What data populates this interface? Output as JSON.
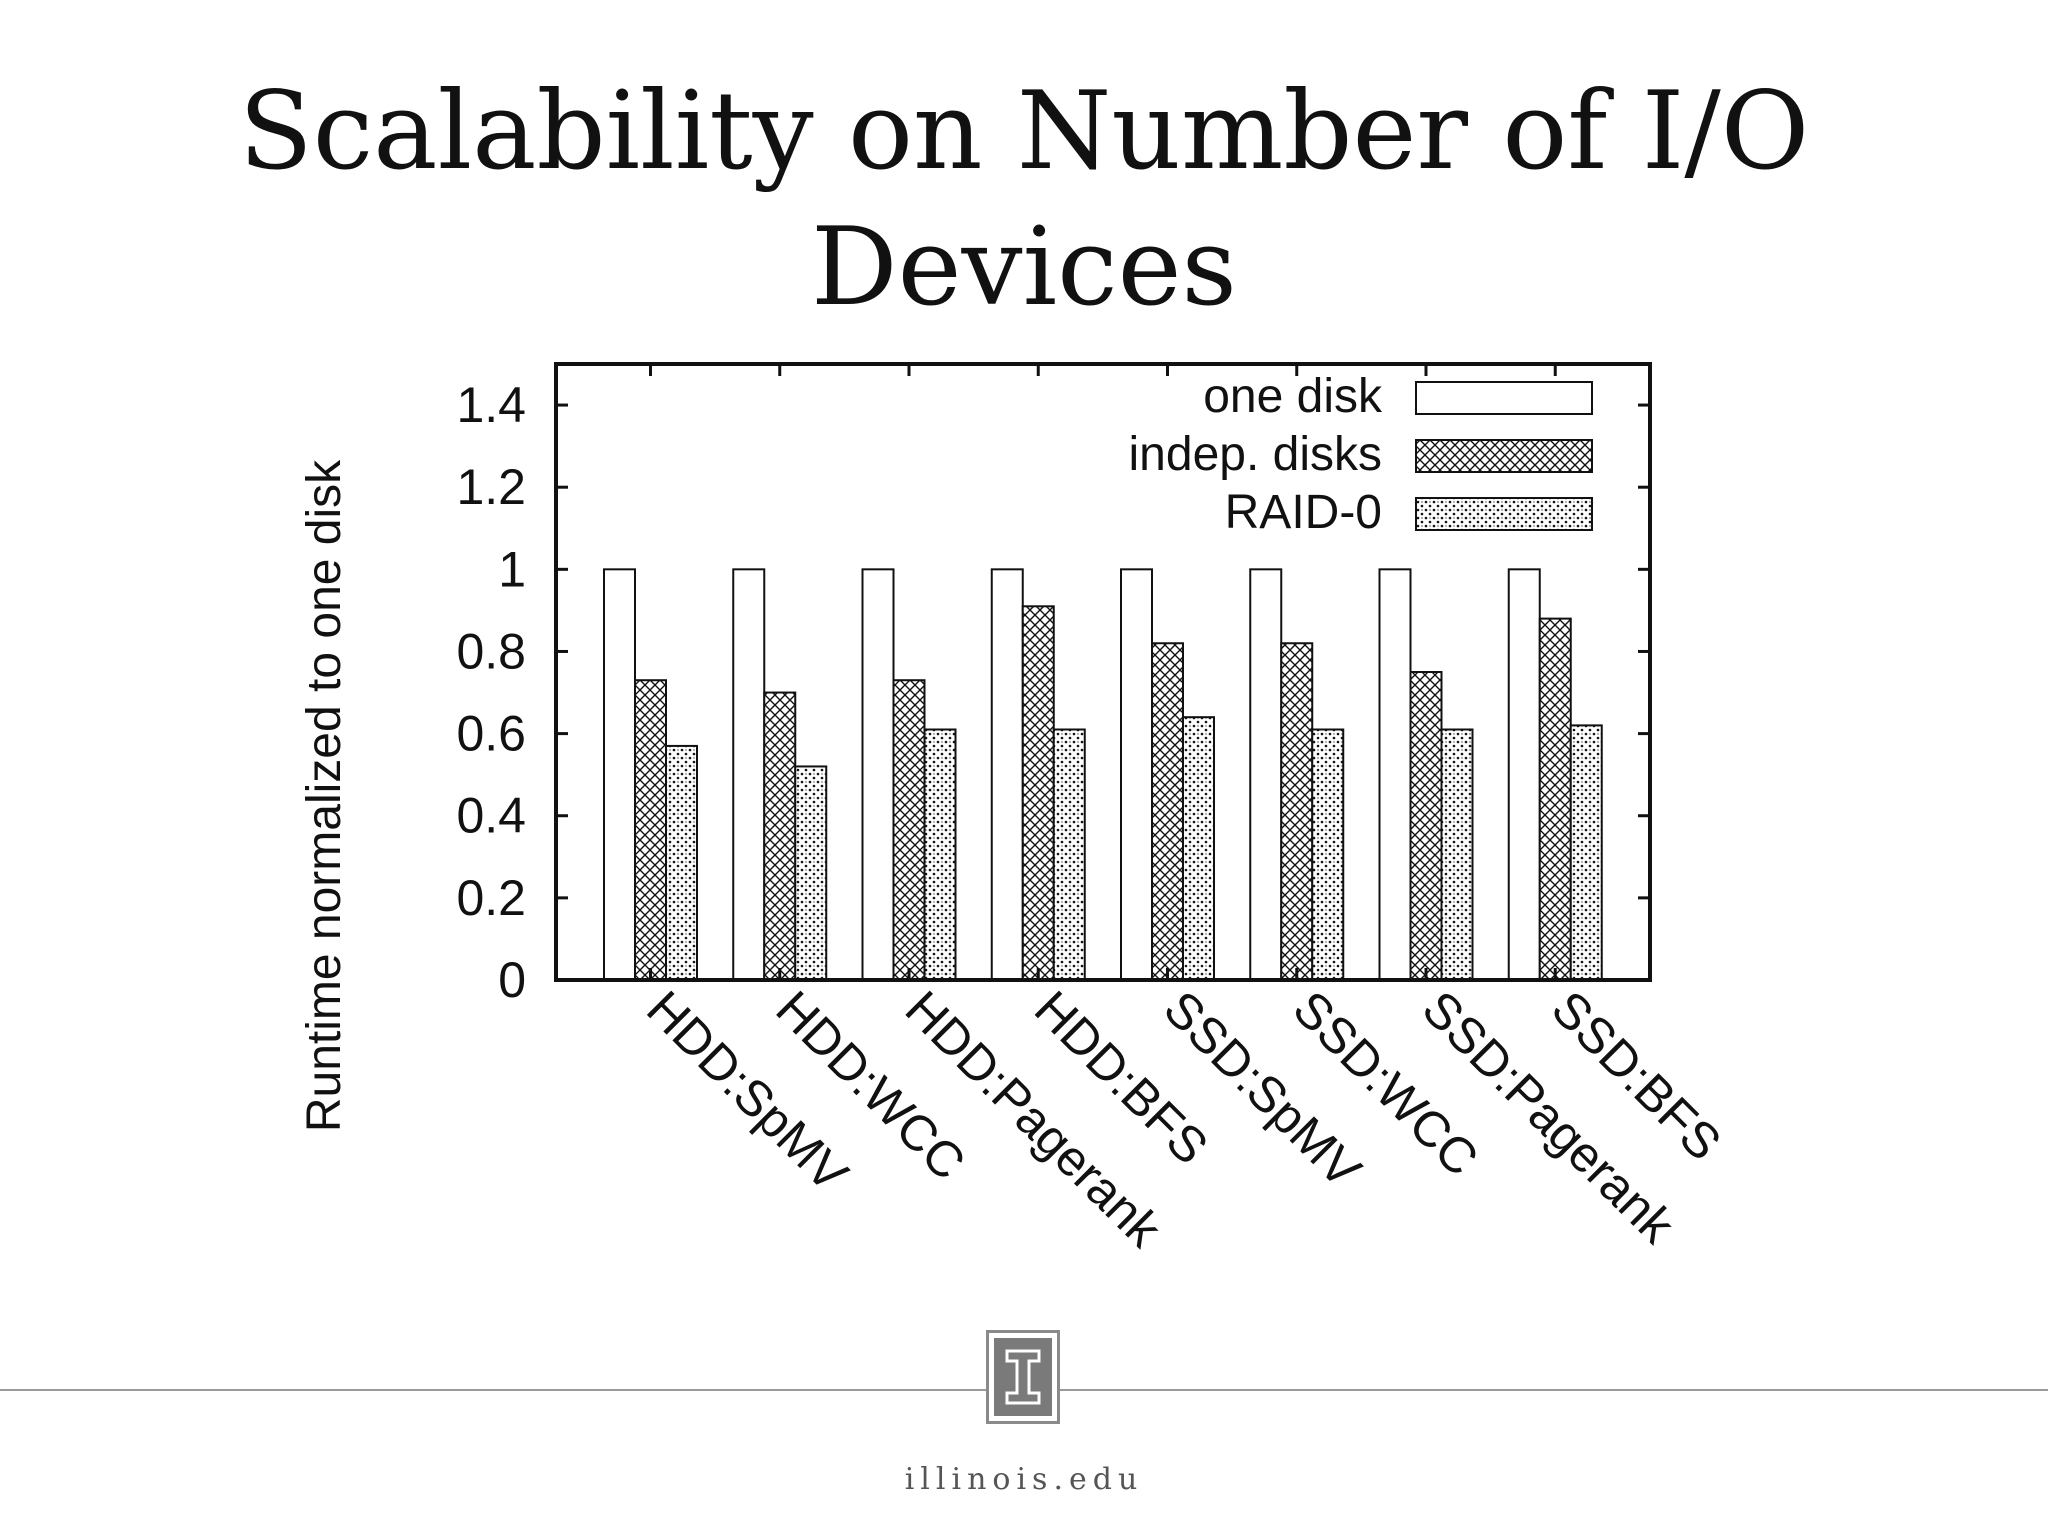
{
  "slide": {
    "title_line1": "Scalability on Number of I/O",
    "title_line2": "Devices",
    "footer_url": "illinois.edu",
    "logo_letter": "I"
  },
  "chart_data": {
    "type": "bar",
    "title": "",
    "xlabel": "",
    "ylabel": "Runtime normalized to one disk",
    "ylim": [
      0,
      1.5
    ],
    "yticks": [
      "0",
      "0.2",
      "0.4",
      "0.6",
      "0.8",
      "1",
      "1.2",
      "1.4"
    ],
    "grid": false,
    "legend_position": "top-right",
    "categories": [
      "HDD:SpMV",
      "HDD:WCC",
      "HDD:Pagerank",
      "HDD:BFS",
      "SSD:SpMV",
      "SSD:WCC",
      "SSD:Pagerank",
      "SSD:BFS"
    ],
    "series": [
      {
        "name": "one disk",
        "pattern": "empty",
        "values": [
          1,
          1,
          1,
          1,
          1,
          1,
          1,
          1
        ]
      },
      {
        "name": "indep. disks",
        "pattern": "crosshatch",
        "values": [
          0.73,
          0.7,
          0.73,
          0.91,
          0.82,
          0.82,
          0.75,
          0.88
        ]
      },
      {
        "name": "RAID-0",
        "pattern": "dots",
        "values": [
          0.57,
          0.52,
          0.61,
          0.61,
          0.64,
          0.61,
          0.61,
          0.62
        ]
      }
    ]
  }
}
